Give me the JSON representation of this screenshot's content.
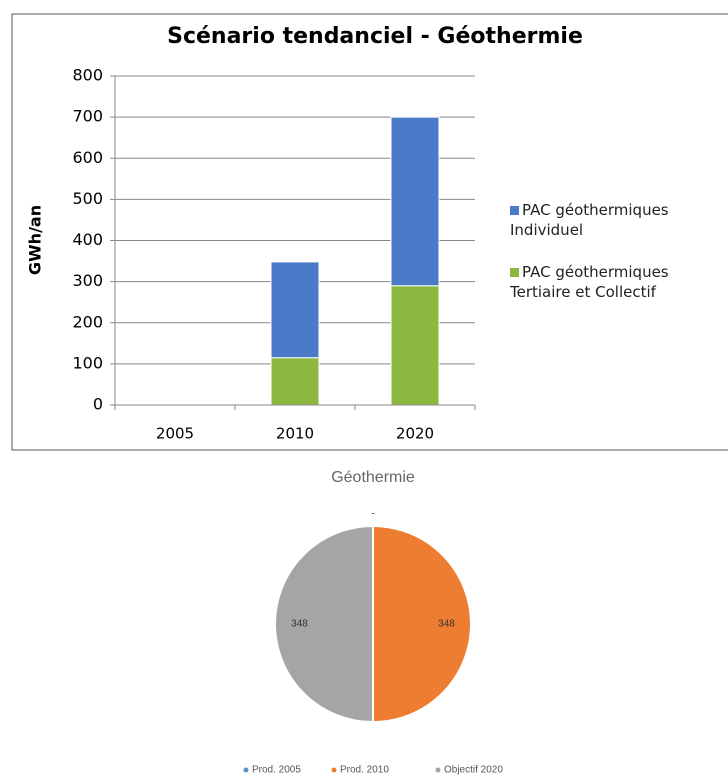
{
  "chart_data": [
    {
      "type": "stacked_bar",
      "title": "Scénario tendanciel - Géothermie",
      "y_label": "GWh/an",
      "categories": [
        "2005",
        "2010",
        "2020"
      ],
      "series": [
        {
          "name": "PAC géothermiques Tertiaire et Collectif",
          "color": "#8cb83f",
          "values": [
            0,
            115,
            290
          ]
        },
        {
          "name": "PAC géothermiques Individuel",
          "color": "#4a7ac8",
          "values": [
            0,
            233,
            410
          ]
        }
      ],
      "ylim": [
        0,
        800
      ],
      "yticks": [
        0,
        100,
        200,
        300,
        400,
        500,
        600,
        700,
        800
      ],
      "grid": true,
      "legend": "right"
    },
    {
      "type": "pie",
      "title": "Géothermie",
      "categories": [
        "Prod. 2005",
        "Prod. 2010",
        "Objectif 2020"
      ],
      "colors": [
        "#5b8fd0",
        "#ed7d31",
        "#a5a5a5"
      ],
      "values": [
        0,
        348,
        348
      ],
      "value_labels": [
        "-",
        "348",
        "348"
      ],
      "legend": "bottom"
    }
  ]
}
